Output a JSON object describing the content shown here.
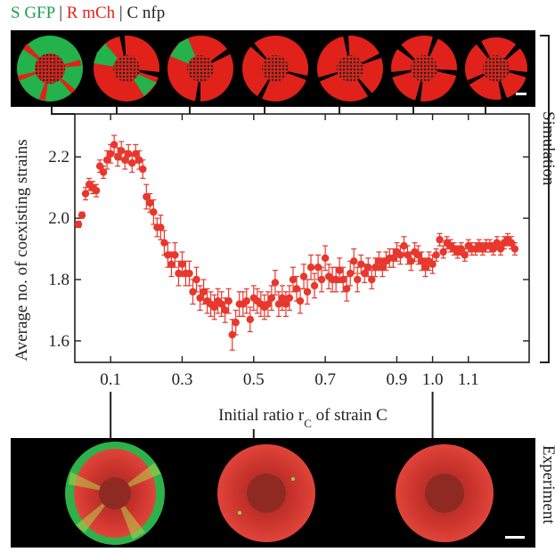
{
  "legend": {
    "s": {
      "text": "S GFP",
      "color": "#1aa34a"
    },
    "r": {
      "text": "R mCh",
      "color": "#e0221b"
    },
    "c": {
      "text": "C nfp",
      "color": "#231f20"
    },
    "separator": "|"
  },
  "side_labels": {
    "simulation": "Simulation",
    "experiment": "Experiment"
  },
  "chart_data": {
    "type": "scatter",
    "xlabel": "Initial ratio r",
    "xlabel_sub": "C",
    "xlabel_tail": " of strain C",
    "ylabel": "Average no. of coexisting strains",
    "xlim": [
      0.0,
      1.27
    ],
    "ylim": [
      1.53,
      2.34
    ],
    "xticks": [
      0.1,
      0.3,
      0.5,
      0.7,
      0.9,
      1.0,
      1.1
    ],
    "xtick_labels": [
      "0.1",
      "0.3",
      "0.5",
      "0.7",
      "0.9",
      "1.0",
      "1.1"
    ],
    "yticks": [
      1.6,
      1.8,
      2.0,
      2.2
    ],
    "ytick_labels": [
      "1.6",
      "1.8",
      "2.0",
      "2.2"
    ],
    "marker_color": "#e8372c",
    "series": [
      {
        "x": [
          0.01,
          0.02,
          0.03,
          0.04,
          0.05,
          0.06,
          0.07,
          0.08,
          0.09,
          0.1,
          0.11,
          0.12,
          0.13,
          0.14,
          0.15,
          0.16,
          0.17,
          0.18,
          0.19,
          0.2,
          0.21,
          0.22,
          0.23,
          0.24,
          0.25,
          0.26,
          0.27,
          0.28,
          0.29,
          0.3,
          0.31,
          0.32,
          0.33,
          0.34,
          0.35,
          0.36,
          0.37,
          0.38,
          0.39,
          0.4,
          0.41,
          0.42,
          0.43,
          0.44,
          0.45,
          0.46,
          0.47,
          0.48,
          0.49,
          0.5,
          0.51,
          0.52,
          0.53,
          0.54,
          0.55,
          0.56,
          0.57,
          0.58,
          0.59,
          0.6,
          0.61,
          0.62,
          0.63,
          0.64,
          0.65,
          0.66,
          0.67,
          0.68,
          0.69,
          0.7,
          0.71,
          0.72,
          0.73,
          0.74,
          0.75,
          0.76,
          0.77,
          0.78,
          0.79,
          0.8,
          0.81,
          0.82,
          0.83,
          0.84,
          0.85,
          0.86,
          0.87,
          0.88,
          0.89,
          0.9,
          0.91,
          0.92,
          0.93,
          0.94,
          0.95,
          0.96,
          0.97,
          0.98,
          0.99,
          1.0,
          1.01,
          1.02,
          1.03,
          1.04,
          1.05,
          1.06,
          1.07,
          1.08,
          1.09,
          1.1,
          1.11,
          1.12,
          1.13,
          1.14,
          1.15,
          1.16,
          1.17,
          1.18,
          1.19,
          1.2,
          1.21,
          1.22,
          1.23
        ],
        "y": [
          1.98,
          2.01,
          2.08,
          2.11,
          2.1,
          2.09,
          2.17,
          2.15,
          2.19,
          2.21,
          2.24,
          2.2,
          2.22,
          2.19,
          2.21,
          2.18,
          2.21,
          2.19,
          2.16,
          2.07,
          2.05,
          2.02,
          1.97,
          1.97,
          1.92,
          1.88,
          1.85,
          1.88,
          1.82,
          1.85,
          1.82,
          1.82,
          1.76,
          1.8,
          1.74,
          1.76,
          1.73,
          1.72,
          1.71,
          1.73,
          1.72,
          1.7,
          1.73,
          1.62,
          1.66,
          1.72,
          1.72,
          1.73,
          1.67,
          1.74,
          1.73,
          1.72,
          1.71,
          1.72,
          1.74,
          1.79,
          1.72,
          1.74,
          1.72,
          1.74,
          1.8,
          1.77,
          1.73,
          1.81,
          1.76,
          1.84,
          1.78,
          1.84,
          1.8,
          1.87,
          1.81,
          1.8,
          1.8,
          1.83,
          1.8,
          1.77,
          1.82,
          1.86,
          1.8,
          1.85,
          1.82,
          1.84,
          1.8,
          1.84,
          1.86,
          1.84,
          1.86,
          1.87,
          1.87,
          1.89,
          1.88,
          1.91,
          1.88,
          1.86,
          1.89,
          1.88,
          1.86,
          1.84,
          1.86,
          1.85,
          1.88,
          1.93,
          1.89,
          1.92,
          1.91,
          1.9,
          1.89,
          1.9,
          1.88,
          1.91,
          1.9,
          1.9,
          1.91,
          1.9,
          1.91,
          1.91,
          1.9,
          1.92,
          1.9,
          1.92,
          1.93,
          1.92,
          1.9
        ],
        "err": [
          0.01,
          0.01,
          0.02,
          0.02,
          0.02,
          0.02,
          0.02,
          0.02,
          0.03,
          0.03,
          0.03,
          0.03,
          0.03,
          0.03,
          0.03,
          0.03,
          0.03,
          0.03,
          0.03,
          0.04,
          0.03,
          0.04,
          0.03,
          0.04,
          0.04,
          0.04,
          0.04,
          0.04,
          0.04,
          0.04,
          0.04,
          0.04,
          0.04,
          0.04,
          0.04,
          0.04,
          0.04,
          0.04,
          0.04,
          0.04,
          0.04,
          0.04,
          0.04,
          0.05,
          0.04,
          0.04,
          0.04,
          0.04,
          0.04,
          0.04,
          0.04,
          0.04,
          0.04,
          0.04,
          0.04,
          0.04,
          0.04,
          0.04,
          0.04,
          0.04,
          0.04,
          0.04,
          0.04,
          0.04,
          0.04,
          0.04,
          0.04,
          0.04,
          0.04,
          0.04,
          0.04,
          0.04,
          0.04,
          0.04,
          0.04,
          0.04,
          0.04,
          0.04,
          0.04,
          0.03,
          0.03,
          0.03,
          0.03,
          0.03,
          0.03,
          0.03,
          0.03,
          0.03,
          0.03,
          0.03,
          0.03,
          0.03,
          0.03,
          0.03,
          0.03,
          0.03,
          0.03,
          0.03,
          0.03,
          0.03,
          0.02,
          0.02,
          0.02,
          0.02,
          0.02,
          0.02,
          0.02,
          0.02,
          0.02,
          0.02,
          0.02,
          0.02,
          0.02,
          0.02,
          0.02,
          0.02,
          0.02,
          0.02,
          0.02,
          0.02,
          0.02,
          0.02,
          0.02
        ]
      }
    ]
  }
}
